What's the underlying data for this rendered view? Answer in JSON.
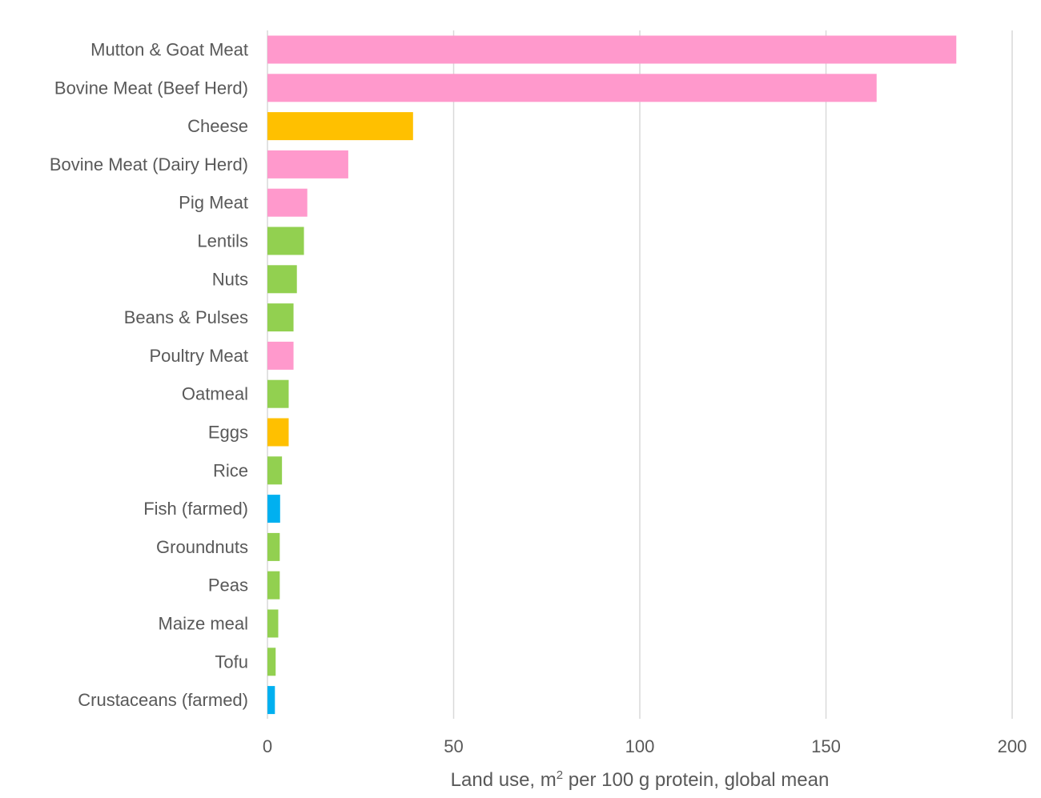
{
  "chart_data": {
    "type": "bar",
    "orientation": "horizontal",
    "categories": [
      "Mutton & Goat Meat",
      "Bovine Meat (Beef Herd)",
      "Cheese",
      "Bovine Meat (Dairy Herd)",
      "Pig Meat",
      "Lentils",
      "Nuts",
      "Beans & Pulses",
      "Poultry Meat",
      "Oatmeal",
      "Eggs",
      "Rice",
      "Fish (farmed)",
      "Groundnuts",
      "Peas",
      "Maize meal",
      "Tofu",
      "Crustaceans (farmed)"
    ],
    "values": [
      185,
      163.6,
      39.1,
      21.7,
      10.7,
      9.8,
      7.9,
      7.0,
      7.0,
      5.7,
      5.7,
      3.9,
      3.4,
      3.3,
      3.3,
      2.9,
      2.2,
      2.0
    ],
    "colors": [
      "#ff99cc",
      "#ff99cc",
      "#ffc000",
      "#ff99cc",
      "#ff99cc",
      "#92d050",
      "#92d050",
      "#92d050",
      "#ff99cc",
      "#92d050",
      "#ffc000",
      "#92d050",
      "#00b0f0",
      "#92d050",
      "#92d050",
      "#92d050",
      "#92d050",
      "#00b0f0"
    ],
    "xlim": [
      0,
      200
    ],
    "xticks": [
      0,
      50,
      100,
      150,
      200
    ],
    "xlabel_parts": {
      "before": "Land use, m",
      "superscript": "2",
      "after": " per 100 g protein, global mean"
    },
    "ylabel": "",
    "title": "",
    "grid": "vertical",
    "legend": "none"
  }
}
